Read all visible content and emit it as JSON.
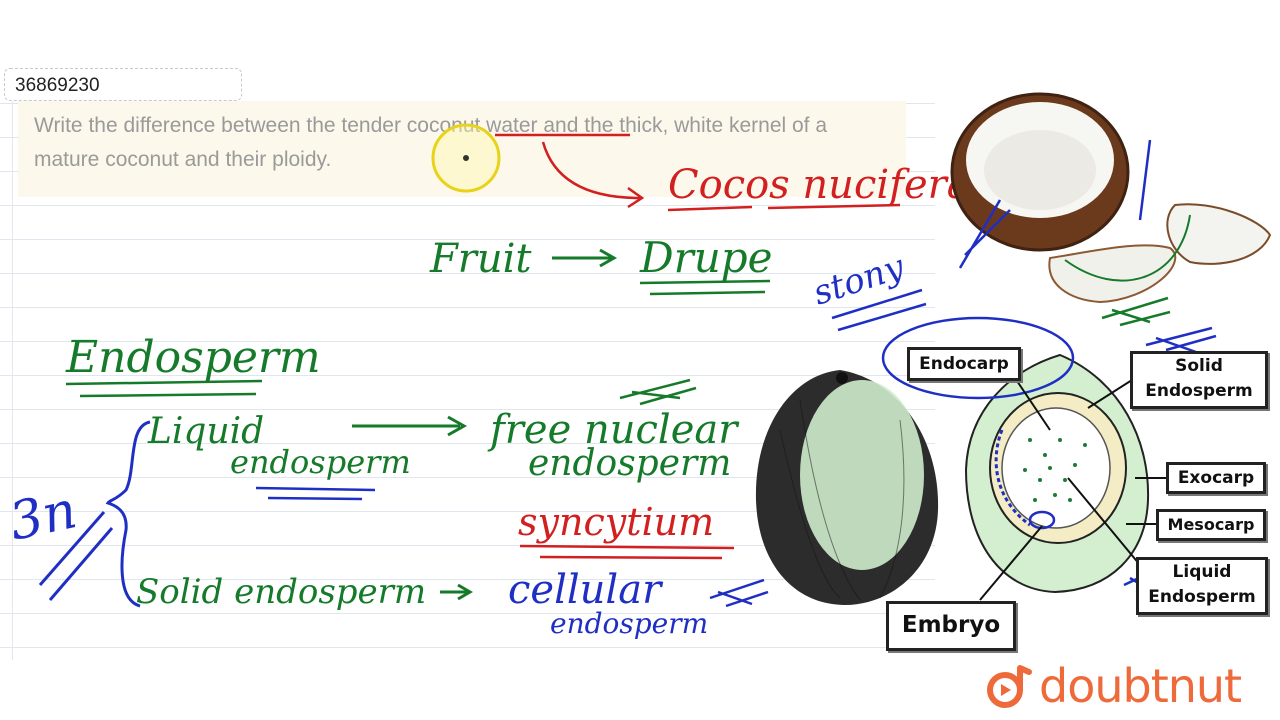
{
  "question_id": "36869230",
  "question_text": "Write the difference between the tender coconut water and the thick, white kernel of a mature coconut and their ploidy.",
  "notes": {
    "cocos": "Cocos nucifera",
    "fruit": "Fruit",
    "drupe": "Drupe",
    "stony": "stony",
    "endosperm_heading": "Endosperm",
    "ploidy": "3n",
    "liquid": "Liquid",
    "liquid_endosperm": "endosperm",
    "free_nuclear": "free nuclear",
    "free_nuclear_endosperm": "endosperm",
    "syncytium": "syncytium",
    "solid": "Solid endosperm",
    "cellular": "cellular",
    "cellular_endosperm": "endosperm"
  },
  "diagram_labels": {
    "endocarp": "Endocarp",
    "solid_endosperm_line1": "Solid",
    "solid_endosperm_line2": "Endosperm",
    "exocarp": "Exocarp",
    "mesocarp": "Mesocarp",
    "liquid_endosperm_line1": "Liquid",
    "liquid_endosperm_line2": "Endosperm",
    "embryo": "Embryo"
  },
  "brand": "doubtnut",
  "colors": {
    "green_ink": "#157a2a",
    "red_ink": "#d21f1f",
    "blue_ink": "#1f2fc4",
    "brand_orange": "#ef6a3a"
  }
}
